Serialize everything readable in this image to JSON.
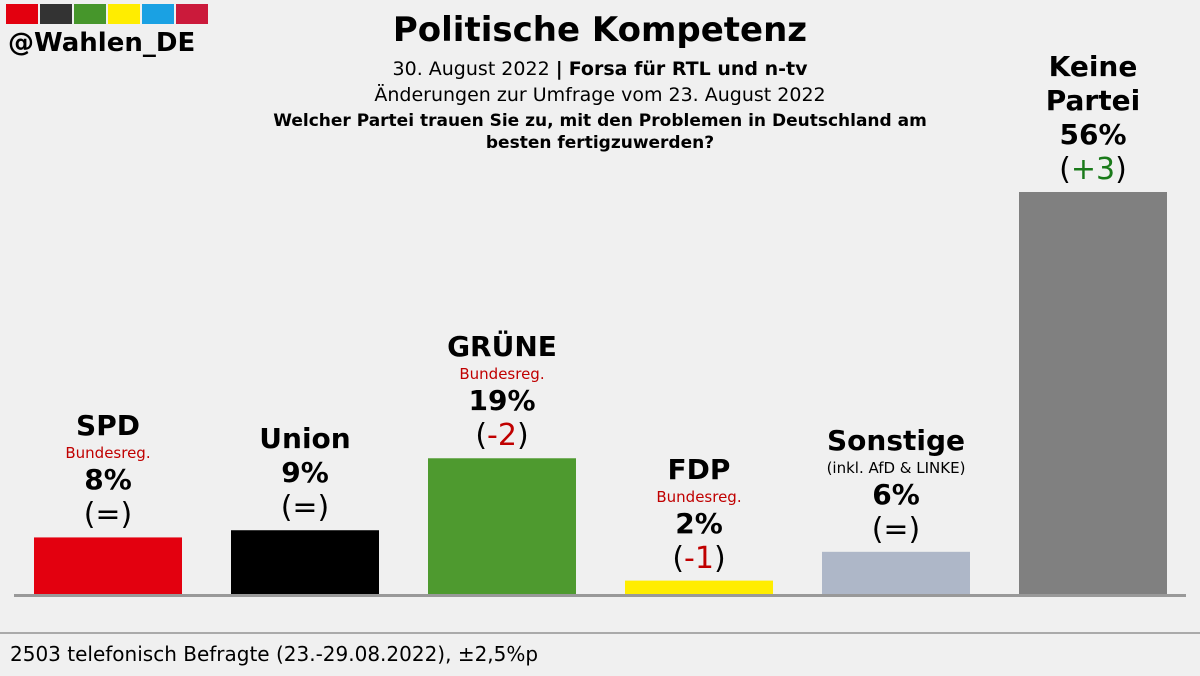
{
  "header": {
    "handle": "@Wahlen_DE",
    "swatch_colors": [
      "#e3000f",
      "#333333",
      "#46962b",
      "#ffed00",
      "#1aa1e3",
      "#cb1a3b"
    ],
    "title": "Politische Kompetenz",
    "date": "30. August 2022",
    "separator": "|",
    "source": "Forsa für RTL und n-tv",
    "comparison": "Änderungen zur Umfrage vom 23. August 2022",
    "question": "Welcher Partei trauen Sie zu, mit den Problemen in Deutschland am besten fertigzuwerden?"
  },
  "footer": {
    "text": "2503 telefonisch Befragte (23.-29.08.2022), ±2,5%p"
  },
  "chart_data": {
    "type": "bar",
    "ylim": [
      0,
      70
    ],
    "categories": [
      "SPD",
      "Union",
      "GRÜNE",
      "FDP",
      "Sonstige",
      "Keine Partei"
    ],
    "values": [
      8,
      9,
      19,
      2,
      6,
      56
    ],
    "percent_labels": [
      "8%",
      "9%",
      "19%",
      "2%",
      "6%",
      "56%"
    ],
    "change_labels": [
      "(=)",
      "(=)",
      "(-2)",
      "(-1)",
      "(=)",
      "(+3)"
    ],
    "change_values": [
      0,
      0,
      -2,
      -1,
      0,
      3
    ],
    "subtitles": [
      "Bundesreg.",
      "",
      "Bundesreg.",
      "Bundesreg.",
      "(inkl. AfD & LINKE)",
      ""
    ],
    "bar_colors": [
      "#e3000f",
      "#000000",
      "#4e9a2f",
      "#ffed00",
      "#aeb7c8",
      "#808080"
    ],
    "change_colors": {
      "up": "#1a7a1a",
      "down": "#c00000",
      "none": "#000000"
    },
    "subtitle_colors": {
      "government": "#c00000",
      "other": "#000000"
    }
  }
}
